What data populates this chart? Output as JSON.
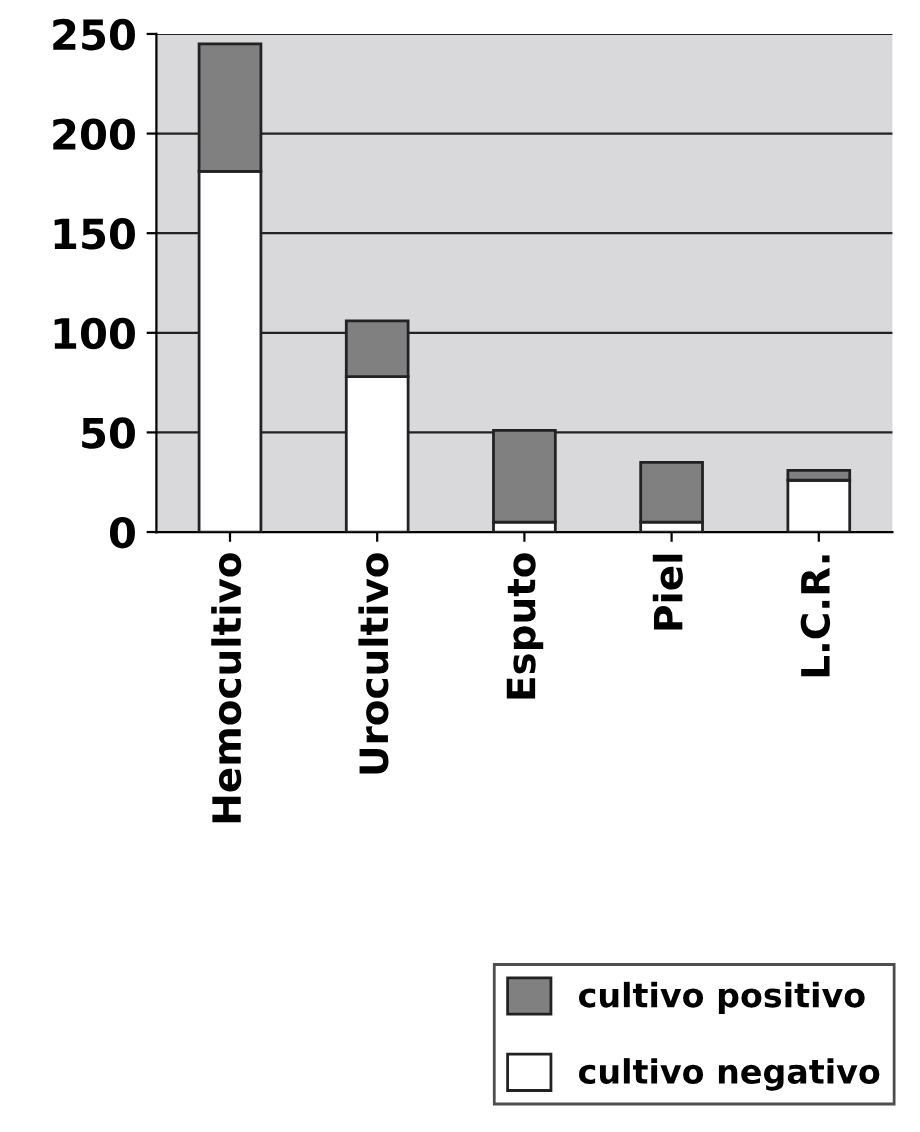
{
  "chart_data": {
    "type": "bar",
    "stacked": true,
    "categories": [
      "Hemocultivo",
      "Urocultivo",
      "Esputo",
      "Piel",
      "L.C.R."
    ],
    "series": [
      {
        "name": "cultivo negativo",
        "color": "#ffffff",
        "values": [
          181,
          78,
          5,
          5,
          26
        ]
      },
      {
        "name": "cultivo positivo",
        "color": "#808080",
        "values": [
          64,
          28,
          46,
          30,
          5
        ]
      }
    ],
    "ylim": [
      0,
      250
    ],
    "yticks": [
      0,
      50,
      100,
      150,
      200,
      250
    ],
    "grid": "y",
    "legend": "bottom right"
  }
}
